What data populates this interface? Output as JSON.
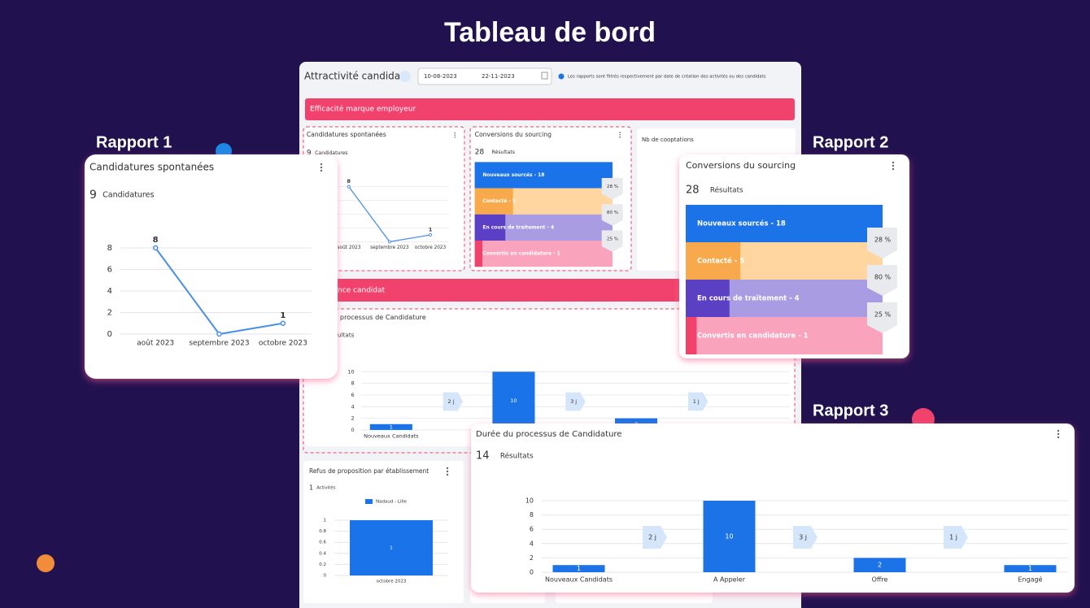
{
  "page_title": "Tableau de bord",
  "callouts": [
    "Rapport 1",
    "Rapport 2",
    "Rapport 3"
  ],
  "dashboard": {
    "title": "Attractivité candidat",
    "date_from": "10-08-2023",
    "date_to": "22-11-2023",
    "info": "Les rapports sont filtrés respectivement par date de création des activités ou des candidats",
    "sections": [
      "Efficacité marque employeur",
      "Expérience candidat"
    ],
    "cooptations_title": "Nb de cooptations",
    "refusals": {
      "title": "Refus de proposition par établissement",
      "count": 1,
      "unit": "Activités",
      "chart": {
        "type": "bar",
        "categories": [
          "octobre 2023"
        ],
        "series": [
          {
            "name": "Nadaud - Lille",
            "color": "#1a73e8",
            "values": [
              1
            ]
          }
        ],
        "ylim": [
          0,
          1
        ],
        "yticks": [
          0,
          0.2,
          0.4,
          0.6,
          0.8,
          1
        ]
      }
    }
  },
  "reports": [
    {
      "title": "Candidatures spontanées",
      "count": 9,
      "unit": "Candidatures",
      "chart": {
        "type": "line",
        "categories": [
          "août 2023",
          "septembre 2023",
          "octobre 2023"
        ],
        "values": [
          8,
          0,
          1
        ],
        "color": "#4a8fe7",
        "ylim": [
          0,
          8
        ],
        "yticks": [
          0,
          2,
          4,
          6,
          8
        ],
        "grid": true
      }
    },
    {
      "title": "Conversions du sourcing",
      "count": 28,
      "unit": "Résultats",
      "chart": {
        "type": "funnel",
        "values": [
          18,
          5,
          4,
          1
        ],
        "value_labels": [
          "Nouveaux sourcés - 18",
          "Contacté - 5",
          "En cours de traitement - 4",
          "Convertis en candidature - 1"
        ],
        "colors": [
          "#1a73e8",
          "#f7a94b",
          "#5b3fc4",
          "#f0426c"
        ],
        "light_colors": [
          "#8db8f5",
          "#ffd69f",
          "#a99ce2",
          "#f9a4bc"
        ],
        "rates": [
          28,
          80,
          25
        ],
        "rate_labels": [
          "28 %",
          "80 %",
          "25 %"
        ]
      }
    },
    {
      "title": "Durée du processus de Candidature",
      "count": 14,
      "unit": "Résultats",
      "chart": {
        "type": "bar",
        "categories": [
          "Nouveaux Candidats",
          "A Appeler",
          "Offre",
          "Engagé"
        ],
        "values": [
          1,
          10,
          2,
          1
        ],
        "color": "#1a73e8",
        "ylim": [
          0,
          10
        ],
        "yticks": [
          0,
          2,
          4,
          6,
          8,
          10
        ],
        "grid": true,
        "durations": [
          "2 j",
          "3 j",
          "1 j"
        ]
      }
    }
  ]
}
